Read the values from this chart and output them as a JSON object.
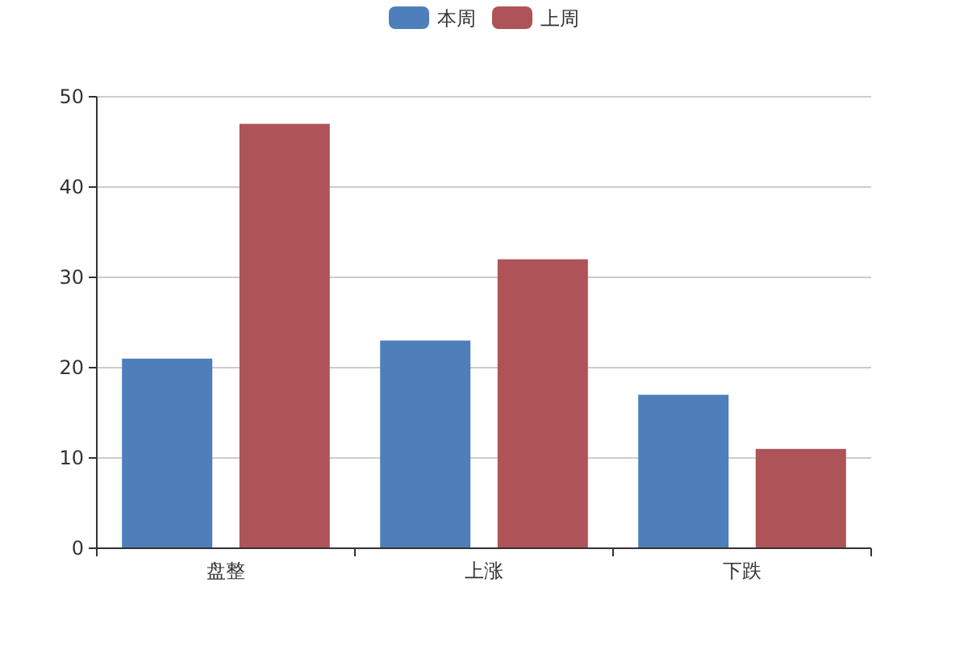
{
  "chart_data": {
    "type": "bar",
    "categories": [
      "盘整",
      "上涨",
      "下跌"
    ],
    "series": [
      {
        "name": "本周",
        "color": "#4e7fbb",
        "values": [
          21,
          23,
          17
        ]
      },
      {
        "name": "上周",
        "color": "#ae5357",
        "values": [
          47,
          32,
          11
        ]
      }
    ],
    "ylim": [
      0,
      50
    ],
    "yticks": [
      0,
      10,
      20,
      30,
      40,
      50
    ],
    "grid": "y",
    "legend": "top"
  }
}
